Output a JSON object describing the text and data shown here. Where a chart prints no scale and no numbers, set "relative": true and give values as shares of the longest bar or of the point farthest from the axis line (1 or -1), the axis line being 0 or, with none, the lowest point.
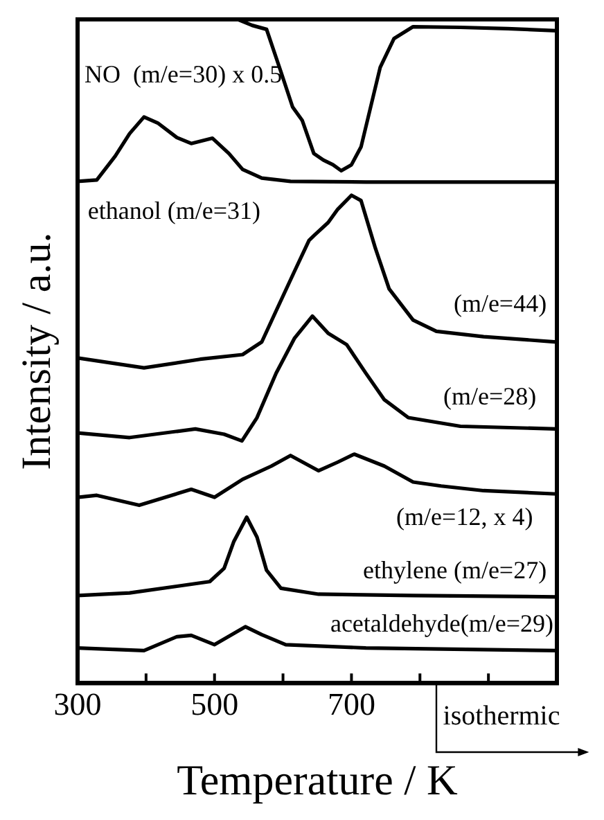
{
  "chart_data": {
    "type": "line",
    "relative": true,
    "xlabel": "Temperature / K",
    "ylabel": "Intensity / a.u.",
    "xlim": [
      300,
      1000
    ],
    "xticks": [
      300,
      {
        "value": 400,
        "label": null
      },
      500,
      {
        "value": 600,
        "label": null
      },
      700,
      {
        "value": 800,
        "label": null
      },
      {
        "value": 900,
        "label": null
      }
    ],
    "grid": false,
    "legend": false,
    "annotations": [
      "isothermic"
    ],
    "series": [
      {
        "name": "NO  (m/e=30) x 0.5",
        "color": "#000000",
        "x": [
          534,
          555,
          576,
          597,
          614,
          628,
          645,
          659,
          673,
          685,
          700,
          714,
          728,
          742,
          762,
          790,
          859,
          928,
          1000
        ],
        "values": [
          1,
          0.991,
          0.985,
          0.921,
          0.868,
          0.848,
          0.798,
          0.788,
          0.781,
          0.772,
          0.781,
          0.808,
          0.868,
          0.928,
          0.971,
          0.989,
          0.988,
          0.986,
          0.983
        ]
      },
      {
        "name": "ethanol (m/e=31)",
        "color": "#000000",
        "x": [
          300,
          328,
          355,
          376,
          397,
          417,
          445,
          466,
          497,
          521,
          541,
          569,
          611,
          721,
          1000
        ],
        "values": [
          0.756,
          0.758,
          0.794,
          0.828,
          0.853,
          0.844,
          0.822,
          0.813,
          0.821,
          0.798,
          0.774,
          0.761,
          0.756,
          0.755,
          0.755
        ]
      },
      {
        "name": "(m/e=44)",
        "color": "#000000",
        "x": [
          300,
          397,
          479,
          541,
          569,
          590,
          617,
          638,
          645,
          666,
          680,
          700,
          714,
          735,
          755,
          790,
          824,
          893,
          1000
        ],
        "values": [
          0.49,
          0.475,
          0.488,
          0.495,
          0.514,
          0.561,
          0.621,
          0.667,
          0.674,
          0.694,
          0.714,
          0.735,
          0.727,
          0.655,
          0.594,
          0.547,
          0.53,
          0.522,
          0.514
        ]
      },
      {
        "name": "(m/e=28)",
        "color": "#000000",
        "x": [
          300,
          376,
          472,
          514,
          540,
          562,
          590,
          617,
          643,
          666,
          693,
          721,
          748,
          783,
          859,
          1000
        ],
        "values": [
          0.377,
          0.37,
          0.383,
          0.375,
          0.365,
          0.4,
          0.467,
          0.52,
          0.553,
          0.527,
          0.51,
          0.467,
          0.427,
          0.4,
          0.387,
          0.383
        ]
      },
      {
        "name": "(m/e=12, x 4)",
        "color": "#000000",
        "x": [
          300,
          328,
          390,
          466,
          500,
          541,
          583,
          611,
          652,
          680,
          704,
          748,
          790,
          831,
          893,
          1000
        ],
        "values": [
          0.28,
          0.283,
          0.268,
          0.292,
          0.28,
          0.307,
          0.327,
          0.343,
          0.32,
          0.333,
          0.345,
          0.327,
          0.303,
          0.297,
          0.29,
          0.285
        ]
      },
      {
        "name": "ethylene (m/e=27)",
        "color": "#000000",
        "x": [
          300,
          376,
          445,
          493,
          514,
          528,
          547,
          562,
          576,
          597,
          652,
          790,
          1000
        ],
        "values": [
          0.132,
          0.136,
          0.146,
          0.153,
          0.173,
          0.213,
          0.25,
          0.22,
          0.17,
          0.143,
          0.134,
          0.132,
          0.13
        ]
      },
      {
        "name": "acetaldehyde(m/e=29)",
        "color": "#000000",
        "x": [
          300,
          397,
          445,
          466,
          500,
          545,
          569,
          604,
          721,
          1000
        ],
        "values": [
          0.053,
          0.049,
          0.07,
          0.072,
          0.058,
          0.085,
          0.073,
          0.058,
          0.053,
          0.049
        ]
      }
    ]
  }
}
